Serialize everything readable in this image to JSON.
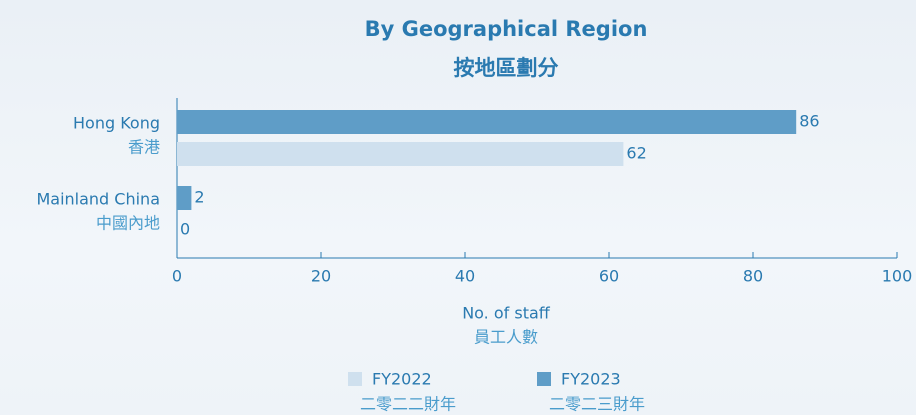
{
  "chart_data": {
    "type": "barh",
    "title": "By Geographical Region",
    "subtitle": "按地區劃分",
    "categories": [
      "Hong Kong",
      "Mainland China"
    ],
    "categories_zh": [
      "香港",
      "中國內地"
    ],
    "series": [
      {
        "name": "FY2023",
        "name_zh": "二零二三財年",
        "color": "#5f9dc7",
        "values": [
          86,
          2
        ]
      },
      {
        "name": "FY2022",
        "name_zh": "二零二二財年",
        "color": "#cfe0ee",
        "values": [
          62,
          0
        ]
      }
    ],
    "xlabel": "No. of staff",
    "xlabel_zh": "員工人數",
    "xlim": [
      0,
      100
    ],
    "xticks": [
      0,
      20,
      40,
      60,
      80,
      100
    ],
    "legend_order": [
      1,
      0
    ]
  }
}
